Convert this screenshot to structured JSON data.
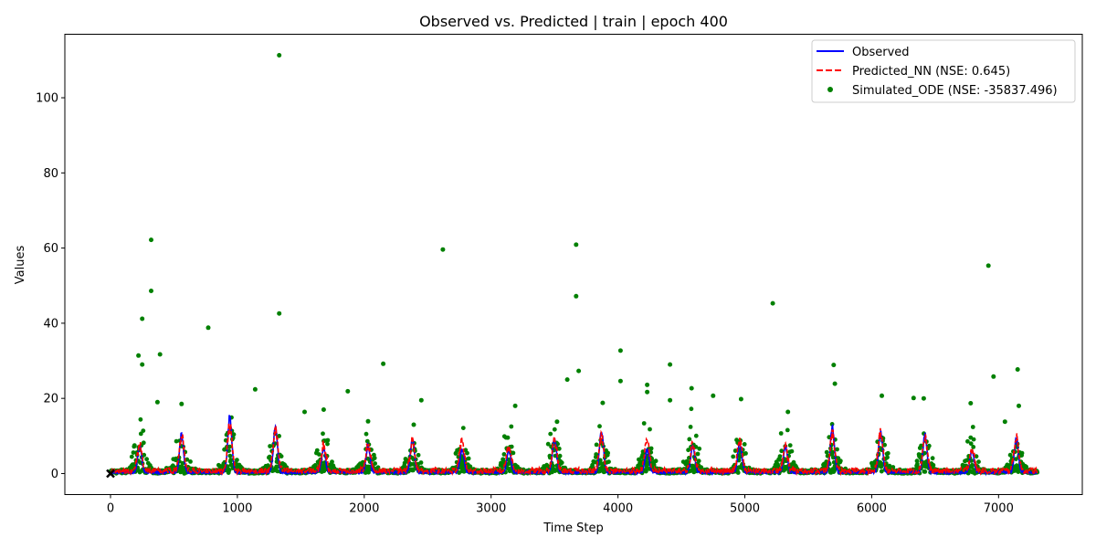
{
  "chart_data": {
    "type": "line",
    "title": "Observed vs. Predicted | train | epoch 400",
    "xlabel": "Time Step",
    "ylabel": "Values",
    "xlim": [
      -360,
      7660
    ],
    "ylim": [
      -5.6,
      116.9
    ],
    "xticks": [
      0,
      1000,
      2000,
      3000,
      4000,
      5000,
      6000,
      7000
    ],
    "yticks": [
      0,
      20,
      40,
      60,
      80,
      100
    ],
    "x_range": [
      0,
      7305
    ],
    "grid": false,
    "legend_position": "top-right",
    "start_marker": {
      "x": 0,
      "y": 0,
      "symbol": "x",
      "color": "#000000"
    },
    "series": [
      {
        "name": "Observed",
        "style": "solid-line",
        "color": "#0000ff",
        "peaks": [
          [
            230,
            7
          ],
          [
            560,
            10
          ],
          [
            940,
            15
          ],
          [
            1300,
            12
          ],
          [
            1680,
            6
          ],
          [
            2030,
            7
          ],
          [
            2380,
            9
          ],
          [
            2770,
            6
          ],
          [
            3140,
            6
          ],
          [
            3500,
            9
          ],
          [
            3870,
            11
          ],
          [
            4230,
            6
          ],
          [
            4590,
            7
          ],
          [
            4960,
            8
          ],
          [
            5320,
            7
          ],
          [
            5690,
            12
          ],
          [
            6070,
            11
          ],
          [
            6420,
            10
          ],
          [
            6790,
            6
          ],
          [
            7140,
            9
          ]
        ]
      },
      {
        "name": "Predicted_NN  (NSE: 0.645)",
        "style": "dashed-line",
        "color": "#ff0000",
        "peaks": [
          [
            230,
            7
          ],
          [
            560,
            9
          ],
          [
            940,
            12
          ],
          [
            1300,
            11
          ],
          [
            1680,
            7
          ],
          [
            2030,
            7
          ],
          [
            2380,
            8
          ],
          [
            2770,
            8
          ],
          [
            3140,
            7
          ],
          [
            3500,
            8
          ],
          [
            3870,
            9
          ],
          [
            4230,
            8
          ],
          [
            4590,
            7
          ],
          [
            4960,
            8
          ],
          [
            5320,
            6
          ],
          [
            5690,
            10
          ],
          [
            6070,
            10
          ],
          [
            6420,
            9
          ],
          [
            6790,
            6
          ],
          [
            7140,
            9
          ]
        ]
      },
      {
        "name": "Simulated_ODE (NSE: -35837.496)",
        "style": "scatter",
        "color": "#008000",
        "outliers": [
          [
            1330,
            111.3
          ],
          [
            320,
            62.2
          ],
          [
            2620,
            59.6
          ],
          [
            3670,
            60.9
          ],
          [
            6920,
            55.3
          ],
          [
            320,
            48.6
          ],
          [
            3670,
            47.2
          ],
          [
            5220,
            45.3
          ],
          [
            1330,
            42.6
          ],
          [
            250,
            41.2
          ],
          [
            770,
            38.8
          ],
          [
            4020,
            32.7
          ],
          [
            390,
            31.7
          ],
          [
            220,
            31.4
          ],
          [
            2150,
            29.2
          ],
          [
            4410,
            29.0
          ],
          [
            5700,
            28.9
          ],
          [
            250,
            29.0
          ],
          [
            3690,
            27.3
          ],
          [
            7150,
            27.7
          ],
          [
            6960,
            25.8
          ],
          [
            3600,
            25.0
          ],
          [
            4020,
            24.6
          ],
          [
            5710,
            23.9
          ],
          [
            4230,
            23.6
          ],
          [
            4580,
            22.7
          ],
          [
            1140,
            22.4
          ],
          [
            1870,
            21.9
          ],
          [
            4230,
            21.7
          ],
          [
            6080,
            20.7
          ],
          [
            4750,
            20.7
          ],
          [
            6330,
            20.1
          ],
          [
            6410,
            20.0
          ],
          [
            4970,
            19.8
          ],
          [
            2450,
            19.5
          ],
          [
            4410,
            19.5
          ],
          [
            3880,
            18.8
          ],
          [
            7160,
            18.0
          ],
          [
            3190,
            18.0
          ],
          [
            560,
            18.5
          ],
          [
            370,
            19.0
          ],
          [
            1680,
            17.0
          ],
          [
            7050,
            13.8
          ],
          [
            1530,
            16.4
          ],
          [
            2030,
            13.9
          ],
          [
            2390,
            13.0
          ],
          [
            3520,
            13.8
          ],
          [
            5340,
            16.4
          ],
          [
            6780,
            18.7
          ]
        ],
        "cluster_peaks": [
          [
            230,
            16
          ],
          [
            560,
            14
          ],
          [
            940,
            17
          ],
          [
            1300,
            13
          ],
          [
            1680,
            15
          ],
          [
            2030,
            12
          ],
          [
            2380,
            11
          ],
          [
            2770,
            12
          ],
          [
            3140,
            13
          ],
          [
            3500,
            15
          ],
          [
            3870,
            13
          ],
          [
            4230,
            14
          ],
          [
            4590,
            14
          ],
          [
            4960,
            13
          ],
          [
            5320,
            15
          ],
          [
            5690,
            13
          ],
          [
            6070,
            14
          ],
          [
            6420,
            14
          ],
          [
            6790,
            13
          ],
          [
            7140,
            13
          ]
        ]
      }
    ]
  }
}
